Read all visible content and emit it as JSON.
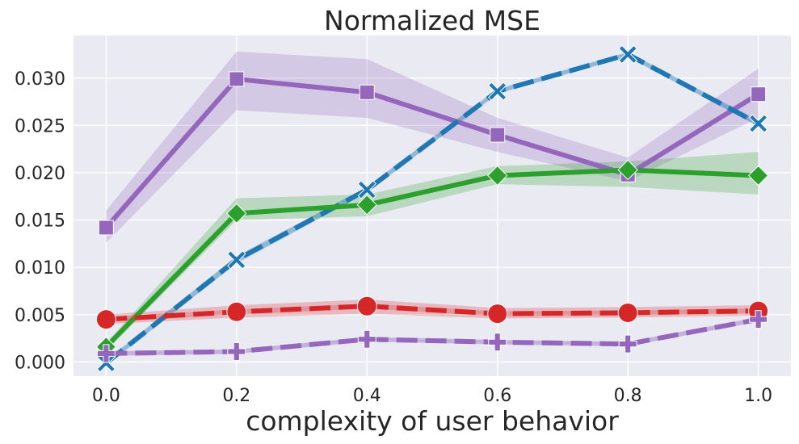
{
  "chart_data": {
    "type": "line",
    "title": "Normalized MSE",
    "xlabel": "complexity of user behavior",
    "ylabel": "",
    "x": [
      0.0,
      0.2,
      0.4,
      0.6,
      0.8,
      1.0
    ],
    "xticks": [
      "0.0",
      "0.2",
      "0.4",
      "0.6",
      "0.8",
      "1.0"
    ],
    "yticks": [
      "0.000",
      "0.005",
      "0.010",
      "0.015",
      "0.020",
      "0.025",
      "0.030"
    ],
    "xlim": [
      -0.05,
      1.05
    ],
    "ylim": [
      -0.0015,
      0.0345
    ],
    "grid": true,
    "background": "#eaeaf2",
    "series": [
      {
        "color": "#9467bd",
        "linestyle": "solid",
        "marker": "square",
        "values": [
          0.0142,
          0.0299,
          0.0285,
          0.024,
          0.0198,
          0.0283
        ],
        "band_lower": [
          0.0126,
          0.0266,
          0.0258,
          0.0222,
          0.0191,
          0.0258
        ],
        "band_upper": [
          0.016,
          0.0328,
          0.032,
          0.0258,
          0.0216,
          0.031
        ]
      },
      {
        "color": "#1f77b4",
        "linestyle": "dashed",
        "marker": "x",
        "values": [
          -0.0001,
          0.0108,
          0.0182,
          0.0286,
          0.0325,
          0.0252
        ],
        "band_lower": [
          -0.0003,
          0.0104,
          0.0179,
          0.0284,
          0.0323,
          0.0249
        ],
        "band_upper": [
          0.0001,
          0.0112,
          0.0185,
          0.0288,
          0.0327,
          0.0255
        ]
      },
      {
        "color": "#2ca02c",
        "linestyle": "solid",
        "marker": "diamond",
        "values": [
          0.0016,
          0.0157,
          0.0166,
          0.0197,
          0.0203,
          0.0197
        ],
        "band_lower": [
          0.0012,
          0.015,
          0.0154,
          0.0188,
          0.0185,
          0.0177
        ],
        "band_upper": [
          0.002,
          0.0173,
          0.0177,
          0.0207,
          0.0212,
          0.0222
        ]
      },
      {
        "color": "#d62728",
        "linestyle": "dashed",
        "marker": "circle",
        "values": [
          0.0045,
          0.0053,
          0.0059,
          0.0051,
          0.0052,
          0.0054
        ],
        "band_lower": [
          0.004,
          0.0047,
          0.0051,
          0.0046,
          0.0047,
          0.0049
        ],
        "band_upper": [
          0.005,
          0.006,
          0.0066,
          0.0057,
          0.0058,
          0.006
        ]
      },
      {
        "color": "#9467bd",
        "linestyle": "dashed",
        "marker": "plus",
        "values": [
          0.0009,
          0.0011,
          0.0024,
          0.0021,
          0.0019,
          0.0045
        ],
        "band_lower": [
          0.0007,
          0.0009,
          0.0022,
          0.0019,
          0.0017,
          0.0043
        ],
        "band_upper": [
          0.0011,
          0.0013,
          0.0026,
          0.0023,
          0.0021,
          0.0047
        ]
      }
    ]
  }
}
